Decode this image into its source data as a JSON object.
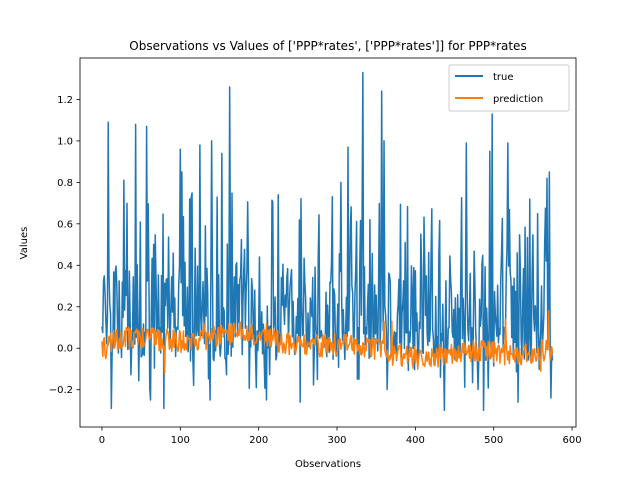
{
  "chart_data": {
    "type": "line",
    "title": "Observations vs Values of ['PPP*rates', ['PPP*rates']] for PPP*rates",
    "xlabel": "Observations",
    "ylabel": "Values",
    "xlim": [
      -28,
      605
    ],
    "ylim": [
      -0.38,
      1.4
    ],
    "xticks": [
      0,
      100,
      200,
      300,
      400,
      500,
      600
    ],
    "yticks": [
      -0.2,
      0.0,
      0.2,
      0.4,
      0.6,
      0.8,
      1.0,
      1.2
    ],
    "legend_position": "upper right",
    "grid": false,
    "n_points": 576,
    "series": [
      {
        "name": "true",
        "color": "#1f77b4",
        "peaks": [
          [
            8,
            1.09
          ],
          [
            12,
            -0.29
          ],
          [
            28,
            0.81
          ],
          [
            43,
            1.08
          ],
          [
            57,
            1.07
          ],
          [
            62,
            -0.25
          ],
          [
            79,
            -0.29
          ],
          [
            100,
            0.96
          ],
          [
            102,
            0.85
          ],
          [
            125,
            0.98
          ],
          [
            138,
            -0.25
          ],
          [
            140,
            1.0
          ],
          [
            153,
            0.94
          ],
          [
            163,
            1.26
          ],
          [
            210,
            -0.25
          ],
          [
            253,
            -0.26
          ],
          [
            305,
            0.8
          ],
          [
            314,
            0.97
          ],
          [
            333,
            1.33
          ],
          [
            357,
            1.24
          ],
          [
            360,
            1.0
          ],
          [
            437,
            -0.3
          ],
          [
            465,
            0.99
          ],
          [
            487,
            -0.3
          ],
          [
            495,
            0.95
          ],
          [
            498,
            1.13
          ],
          [
            518,
            0.99
          ],
          [
            531,
            -0.26
          ],
          [
            568,
            0.82
          ],
          [
            571,
            0.85
          ],
          [
            573,
            -0.24
          ]
        ]
      },
      {
        "name": "prediction",
        "color": "#ff7f0e",
        "peaks": [
          [
            5,
            -0.05
          ],
          [
            80,
            -0.12
          ],
          [
            130,
            0.12
          ],
          [
            210,
            0.12
          ],
          [
            360,
            0.13
          ],
          [
            370,
            0.13
          ],
          [
            515,
            0.14
          ],
          [
            560,
            -0.11
          ],
          [
            570,
            0.18
          ]
        ]
      }
    ]
  }
}
